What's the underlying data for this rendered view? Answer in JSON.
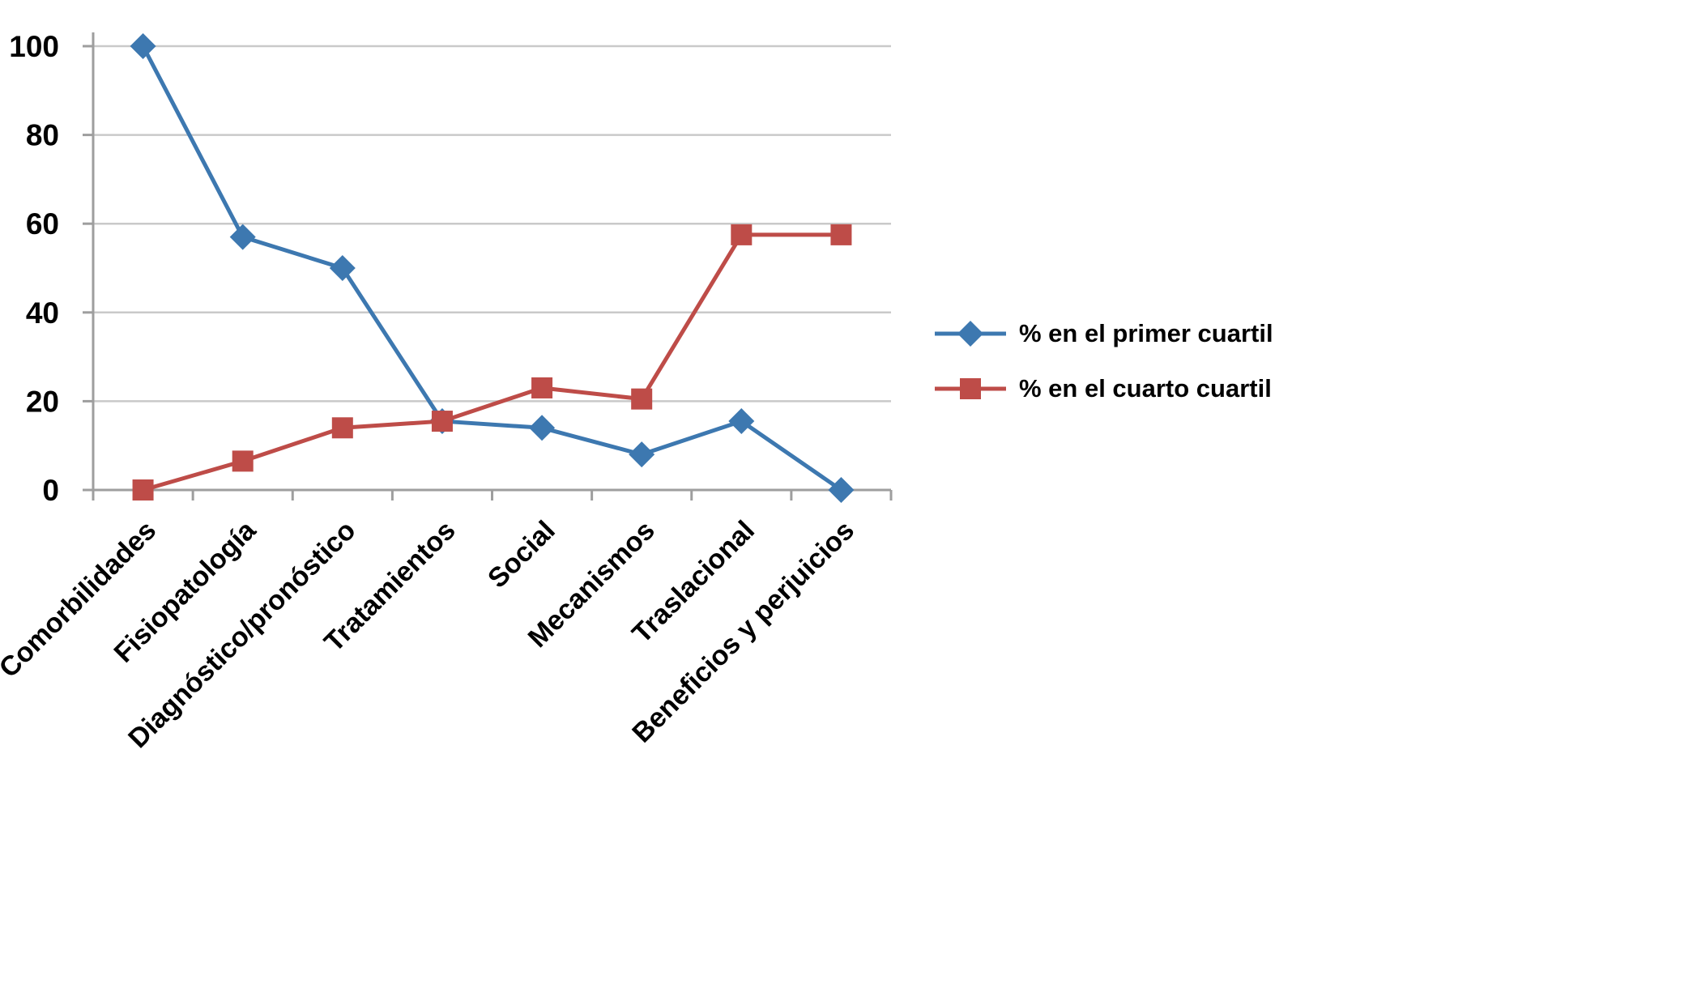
{
  "chart_data": {
    "type": "line",
    "categories": [
      "Comorbilidades",
      "Fisiopatología",
      "Diagnóstico/pronóstico",
      "Tratamientos",
      "Social",
      "Mecanismos",
      "Traslacional",
      "Beneficios y perjuicios"
    ],
    "series": [
      {
        "name": "% en el primer cuartil",
        "color": "#3D78B0",
        "marker": "diamond",
        "values": [
          100,
          57,
          50,
          15.5,
          14,
          8,
          15.5,
          0
        ]
      },
      {
        "name": "% en el cuarto cuartil",
        "color": "#BE4C48",
        "marker": "square",
        "values": [
          0,
          6.5,
          14,
          15.5,
          23,
          20.5,
          57.5,
          57.5
        ]
      }
    ],
    "title": "",
    "xlabel": "",
    "ylabel": "",
    "ylim": [
      0,
      100
    ],
    "yticks": [
      0,
      20,
      40,
      60,
      80,
      100
    ],
    "grid": true,
    "legend_position": "right"
  },
  "colors": {
    "grid": "#C9C9C9",
    "axis": "#9E9E9E",
    "text": "#000000",
    "background": "#FFFFFF"
  }
}
